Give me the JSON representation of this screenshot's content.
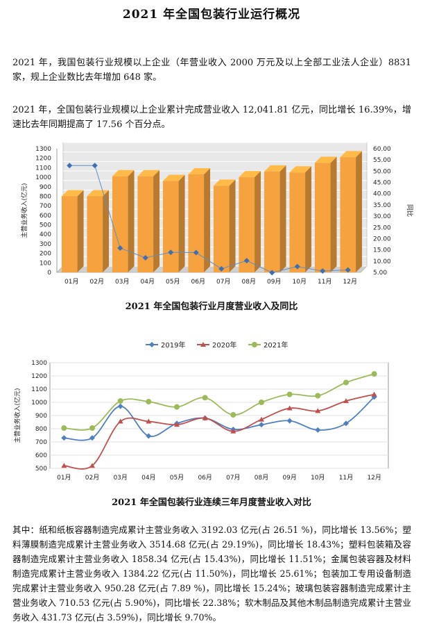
{
  "title": "2021 年全国包装行业运行概况",
  "paragraph1": "2021 年，我国包装行业规模以上企业（年营业收入 2000 万元及以上全部工业法人企业）8831 家，规上企业数比去年增加 648 家。",
  "paragraph2": "2021 年，全国包装行业规模以上企业累计完成营业收入 12,041.81 亿元，同比增长 16.39%，增速比去年同期提高了 17.56 个百分点。",
  "caption1": "2021 年全国包装行业月度营业收入及同比",
  "caption2": "2021 年全国包装行业连续三年月度营业收入对比",
  "paragraph3": "其中：纸和纸板容器制造完成累计主营业务收入 3192.03 亿元(占 26.51 %)，同比增长 13.56%；塑料薄膜制造完成累计主营业务收入 3514.68 亿元(占 29.19%)，同比增长 18.43%；塑料包装箱及容器制造完成累计主营业务收入 1858.34 亿元(占 15.43%)，同比增长 11.51%；金属包装容器及材料制造完成累计主营业务收入 1384.22 亿元(占 11.50%)，同比增长 25.61%；包装加工专用设备制造完成累计主营业务收入 950.28 亿元(占 7.89 %)，同比增长 15.24%；玻璃包装容器制造完成累计主营业务收入 710.53 亿元(占 5.90%)，同比增长 22.38%；软木制品及其他木制品制造完成累计主营业务收入 431.73 亿元(占 3.59%)，同比增长 9.70%。",
  "chart_data": [
    {
      "type": "bar",
      "categories": [
        "01月",
        "02月",
        "03月",
        "04月",
        "05月",
        "06月",
        "07月",
        "08月",
        "09月",
        "10月",
        "11月",
        "12月"
      ],
      "series": [
        {
          "values": [
            800,
            800,
            1010,
            1010,
            960,
            1030,
            910,
            1000,
            1060,
            1050,
            1150,
            1210
          ],
          "color": "#f5a23f"
        },
        {
          "values": [
            52.5,
            52.5,
            15.8,
            11.5,
            13.9,
            13.8,
            6.6,
            10.2,
            4.9,
            7.6,
            5.6,
            6.1
          ],
          "color": "#5b8fc9",
          "kind": "line",
          "axis": "right"
        }
      ],
      "ylabel": "主营业务收入(亿元)",
      "y2label": "同比",
      "ylim": [
        0,
        1300
      ],
      "y2lim": [
        5,
        60
      ],
      "yticks": [
        0,
        100,
        200,
        300,
        400,
        500,
        600,
        700,
        800,
        900,
        1000,
        1100,
        1200,
        1300
      ],
      "y2ticks": [
        "5.00",
        "10.00",
        "15.00",
        "20.00",
        "25.00",
        "30.00",
        "35.00",
        "40.00",
        "45.00",
        "50.00",
        "55.00",
        "60.00"
      ],
      "grid": true
    },
    {
      "type": "line",
      "categories": [
        "01月",
        "02月",
        "03月",
        "04月",
        "05月",
        "06月",
        "07月",
        "08月",
        "09月",
        "10月",
        "11月",
        "12月"
      ],
      "series": [
        {
          "name": "2019年",
          "values": [
            730,
            730,
            970,
            745,
            840,
            880,
            795,
            830,
            860,
            790,
            840,
            1040
          ],
          "color": "#4f7fc0"
        },
        {
          "name": "2020年",
          "values": [
            520,
            520,
            855,
            855,
            830,
            880,
            780,
            870,
            955,
            935,
            1010,
            1060
          ],
          "color": "#c0504d"
        },
        {
          "name": "2021年",
          "values": [
            805,
            805,
            1010,
            1005,
            965,
            1035,
            905,
            1000,
            1060,
            1050,
            1150,
            1215
          ],
          "color": "#9bbb59"
        }
      ],
      "ylabel": "主营业务收入(亿元)",
      "ylim": [
        500,
        1300
      ],
      "yticks": [
        500,
        600,
        700,
        800,
        900,
        1000,
        1100,
        1200,
        1300
      ],
      "legend": "top",
      "grid": true
    }
  ]
}
